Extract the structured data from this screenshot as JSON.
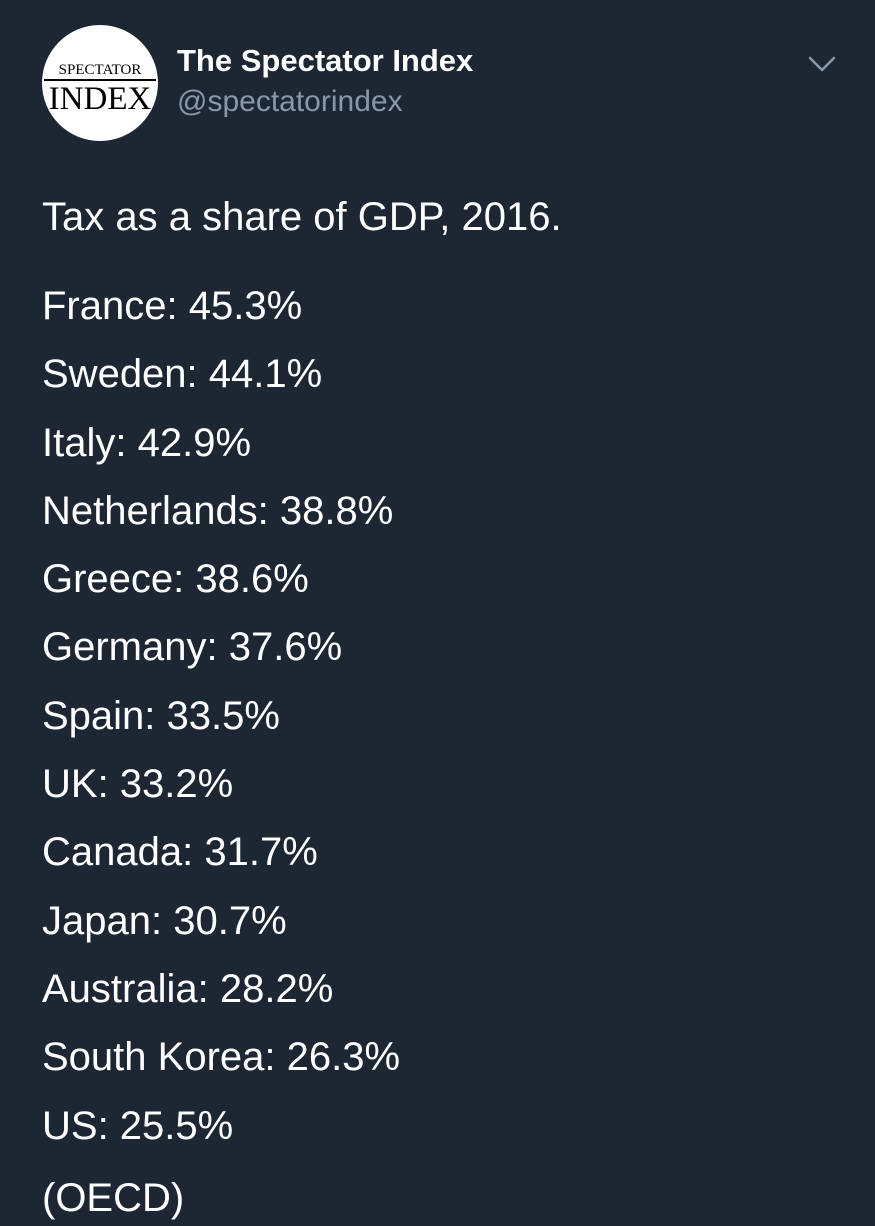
{
  "account": {
    "display_name": "The Spectator Index",
    "handle": "@spectatorindex",
    "avatar": {
      "logo_top": "SPECTATOR",
      "logo_bottom": "INDEX"
    }
  },
  "menu_icon": "chevron-down-icon",
  "tweet": {
    "title": "Tax as a share of GDP, 2016.",
    "items": [
      {
        "text": "France: 45.3%"
      },
      {
        "text": "Sweden: 44.1%"
      },
      {
        "text": "Italy: 42.9%"
      },
      {
        "text": "Netherlands: 38.8%"
      },
      {
        "text": "Greece: 38.6%"
      },
      {
        "text": "Germany: 37.6%"
      },
      {
        "text": "Spain: 33.5%"
      },
      {
        "text": "UK: 33.2%"
      },
      {
        "text": "Canada: 31.7%"
      },
      {
        "text": "Japan: 30.7%"
      },
      {
        "text": "Australia: 28.2%"
      },
      {
        "text": "South Korea: 26.3%"
      },
      {
        "text": "US: 25.5%"
      }
    ],
    "source": "(OECD)"
  },
  "colors": {
    "background": "#1c2733",
    "text": "#ffffff",
    "secondary_text": "#8899a6"
  }
}
